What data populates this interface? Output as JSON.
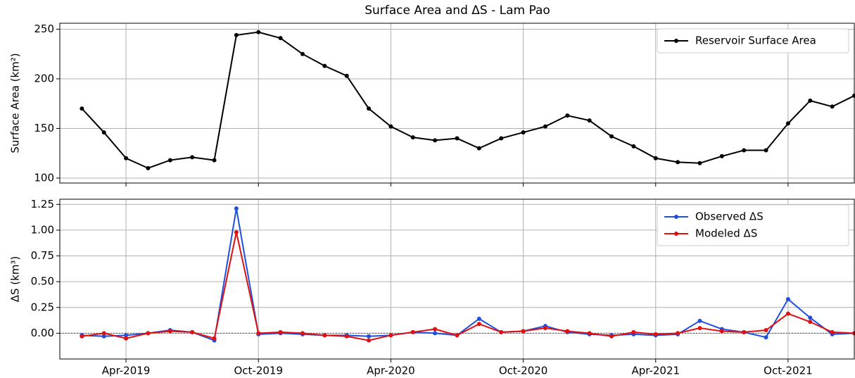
{
  "chart_data": [
    {
      "type": "line",
      "title": "Surface Area and ΔS - Lam Pao",
      "y_label": "Surface Area (km²)",
      "grid": true,
      "legend": "upper right",
      "x": [
        "2019-02",
        "2019-03",
        "2019-04",
        "2019-05",
        "2019-06",
        "2019-07",
        "2019-08",
        "2019-09",
        "2019-10",
        "2019-11",
        "2019-12",
        "2020-01",
        "2020-02",
        "2020-03",
        "2020-04",
        "2020-05",
        "2020-06",
        "2020-07",
        "2020-08",
        "2020-09",
        "2020-10",
        "2020-11",
        "2020-12",
        "2021-01",
        "2021-02",
        "2021-03",
        "2021-04",
        "2021-05",
        "2021-06",
        "2021-07",
        "2021-08",
        "2021-09",
        "2021-10",
        "2021-11",
        "2021-12",
        "2022-01"
      ],
      "xlim": [
        "2019-01",
        "2022-01"
      ],
      "ylim": [
        95,
        256
      ],
      "yticks": [
        100,
        150,
        200,
        250
      ],
      "series": [
        {
          "name": "Reservoir Surface Area",
          "color": "#000000",
          "values": [
            170,
            146,
            120,
            110,
            118,
            121,
            118,
            244,
            247,
            241,
            225,
            213,
            203,
            170,
            152,
            141,
            138,
            140,
            130,
            140,
            146,
            152,
            163,
            158,
            142,
            132,
            120,
            116,
            115,
            122,
            128,
            128,
            155,
            178,
            172,
            183
          ]
        }
      ]
    },
    {
      "type": "line",
      "y_label": "ΔS (km³)",
      "grid": true,
      "legend": "upper right",
      "x": [
        "2019-02",
        "2019-03",
        "2019-04",
        "2019-05",
        "2019-06",
        "2019-07",
        "2019-08",
        "2019-09",
        "2019-10",
        "2019-11",
        "2019-12",
        "2020-01",
        "2020-02",
        "2020-03",
        "2020-04",
        "2020-05",
        "2020-06",
        "2020-07",
        "2020-08",
        "2020-09",
        "2020-10",
        "2020-11",
        "2020-12",
        "2021-01",
        "2021-02",
        "2021-03",
        "2021-04",
        "2021-05",
        "2021-06",
        "2021-07",
        "2021-08",
        "2021-09",
        "2021-10",
        "2021-11",
        "2021-12",
        "2022-01"
      ],
      "xlim": [
        "2019-01",
        "2022-01"
      ],
      "xticks": [
        {
          "value": "2019-04",
          "label": "Apr-2019"
        },
        {
          "value": "2019-10",
          "label": "Oct-2019"
        },
        {
          "value": "2020-04",
          "label": "Apr-2020"
        },
        {
          "value": "2020-10",
          "label": "Oct-2020"
        },
        {
          "value": "2021-04",
          "label": "Apr-2021"
        },
        {
          "value": "2021-10",
          "label": "Oct-2021"
        }
      ],
      "ylim": [
        -0.25,
        1.3
      ],
      "yticks": [
        {
          "value": 0,
          "label": "0.00"
        },
        {
          "value": 0.25,
          "label": "0.25"
        },
        {
          "value": 0.5,
          "label": "0.50"
        },
        {
          "value": 0.75,
          "label": "0.75"
        },
        {
          "value": 1,
          "label": "1.00"
        },
        {
          "value": 1.25,
          "label": "1.25"
        }
      ],
      "series": [
        {
          "name": "Observed ΔS",
          "color": "#1f4fe0",
          "values": [
            -0.02,
            -0.03,
            -0.02,
            0.0,
            0.03,
            0.01,
            -0.07,
            1.21,
            -0.01,
            0.0,
            -0.01,
            -0.02,
            -0.02,
            -0.03,
            -0.02,
            0.01,
            0.0,
            -0.02,
            0.14,
            0.01,
            0.02,
            0.07,
            0.01,
            -0.01,
            -0.02,
            -0.01,
            -0.02,
            -0.01,
            0.12,
            0.04,
            0.01,
            -0.04,
            0.33,
            0.15,
            -0.01,
            0.0
          ]
        },
        {
          "name": "Modeled ΔS",
          "color": "#e01010",
          "values": [
            -0.03,
            0.0,
            -0.05,
            0.0,
            0.02,
            0.01,
            -0.05,
            0.98,
            0.0,
            0.01,
            0.0,
            -0.02,
            -0.03,
            -0.07,
            -0.02,
            0.01,
            0.04,
            -0.02,
            0.09,
            0.01,
            0.02,
            0.05,
            0.02,
            0.0,
            -0.03,
            0.01,
            -0.01,
            0.0,
            0.05,
            0.02,
            0.01,
            0.03,
            0.19,
            0.11,
            0.01,
            0.0
          ]
        }
      ]
    }
  ]
}
